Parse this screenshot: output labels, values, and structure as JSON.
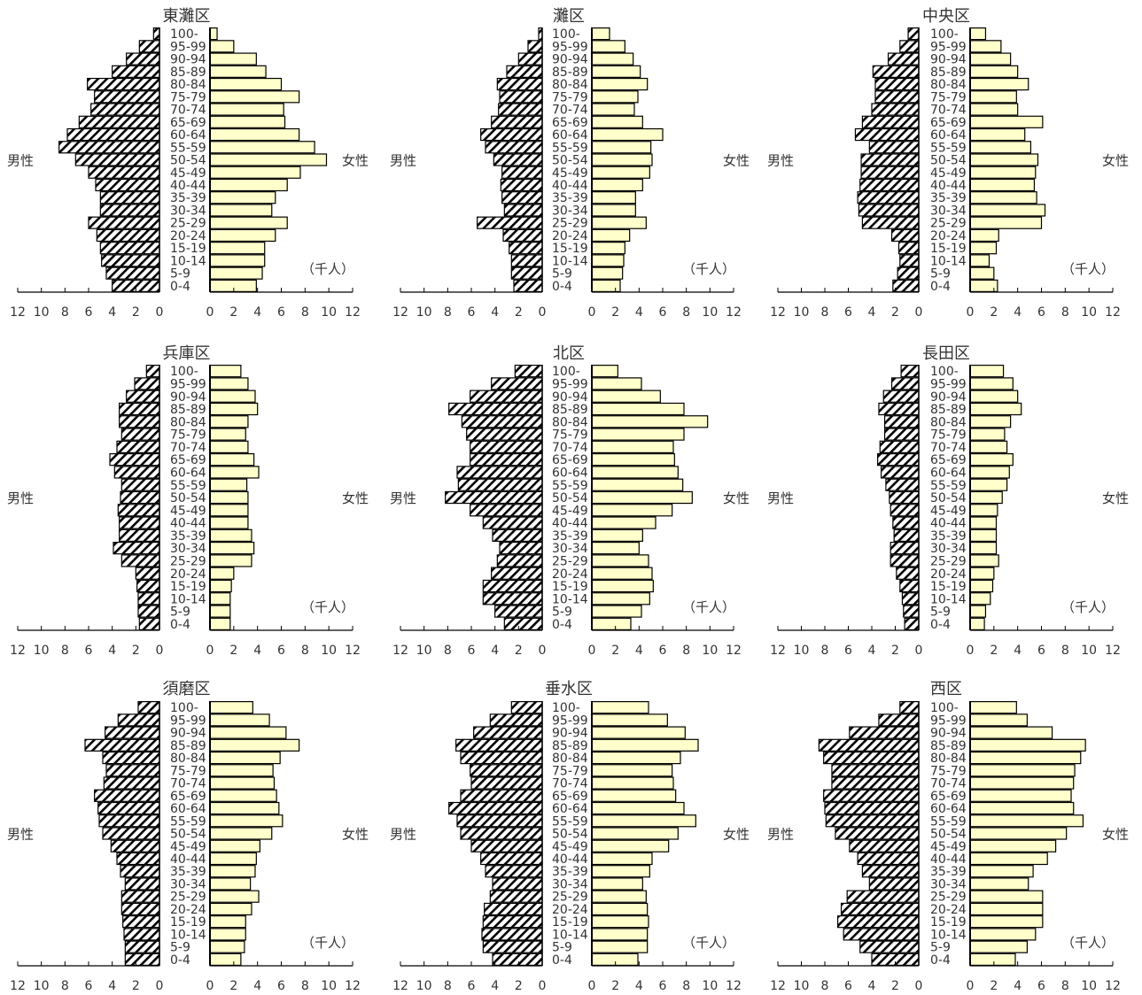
{
  "chart_data": [
    {
      "type": "bar",
      "title": "東灘区",
      "male_label": "男性",
      "female_label": "女性",
      "unit": "（千人）",
      "male_ticks": [
        "12",
        "10",
        "8",
        "6",
        "4",
        "2",
        "0"
      ],
      "female_ticks": [
        "0",
        "2",
        "4",
        "6",
        "8",
        "10",
        "12"
      ],
      "xlim": [
        0,
        12
      ],
      "male": [
        4.0,
        4.5,
        4.9,
        5.0,
        5.3,
        6.0,
        5.0,
        5.0,
        5.4,
        6.0,
        7.1,
        8.5,
        7.8,
        6.8,
        5.8,
        5.5,
        6.1,
        4.0,
        2.8,
        1.7,
        0.5
      ],
      "female": [
        3.9,
        4.4,
        4.6,
        4.6,
        5.5,
        6.5,
        5.2,
        5.5,
        6.5,
        7.6,
        9.8,
        8.8,
        7.5,
        6.3,
        6.2,
        7.5,
        6.0,
        4.7,
        3.9,
        2.0,
        0.6
      ]
    },
    {
      "type": "bar",
      "title": "灘区",
      "male_label": "男性",
      "female_label": "女性",
      "unit": "（千人）",
      "male_ticks": [
        "12",
        "10",
        "8",
        "6",
        "4",
        "2",
        "0"
      ],
      "female_ticks": [
        "0",
        "2",
        "4",
        "6",
        "8",
        "10",
        "12"
      ],
      "xlim": [
        0,
        12
      ],
      "male": [
        2.4,
        2.6,
        2.6,
        2.8,
        3.3,
        5.5,
        3.2,
        3.4,
        3.5,
        3.4,
        4.1,
        4.8,
        5.2,
        4.3,
        3.7,
        3.6,
        3.8,
        3.0,
        2.0,
        1.2,
        0.3
      ],
      "female": [
        2.4,
        2.6,
        2.7,
        2.8,
        3.2,
        4.6,
        3.7,
        3.7,
        4.3,
        4.9,
        5.1,
        5.0,
        6.0,
        4.3,
        3.6,
        3.9,
        4.7,
        4.1,
        3.5,
        2.8,
        1.5
      ]
    },
    {
      "type": "bar",
      "title": "中央区",
      "male_label": "男性",
      "female_label": "女性",
      "unit": "（千人）",
      "male_ticks": [
        "12",
        "10",
        "8",
        "6",
        "4",
        "2",
        "0"
      ],
      "female_ticks": [
        "0",
        "2",
        "4",
        "6",
        "8",
        "10",
        "12"
      ],
      "xlim": [
        0,
        12
      ],
      "male": [
        2.2,
        1.8,
        1.6,
        1.7,
        2.3,
        4.8,
        5.1,
        5.2,
        5.0,
        4.9,
        4.9,
        4.2,
        5.4,
        4.8,
        4.0,
        3.7,
        3.7,
        3.9,
        2.6,
        1.6,
        0.9
      ],
      "female": [
        2.3,
        2.0,
        1.6,
        2.2,
        2.4,
        6.0,
        6.3,
        5.6,
        5.4,
        5.5,
        5.7,
        5.1,
        4.6,
        6.1,
        4.0,
        3.9,
        4.9,
        4.0,
        3.4,
        2.6,
        1.3
      ]
    },
    {
      "type": "bar",
      "title": "兵庫区",
      "male_label": "男性",
      "female_label": "女性",
      "unit": "（千人）",
      "male_ticks": [
        "12",
        "10",
        "8",
        "6",
        "4",
        "2",
        "0"
      ],
      "female_ticks": [
        "0",
        "2",
        "4",
        "6",
        "8",
        "10",
        "12"
      ],
      "xlim": [
        0,
        12
      ],
      "male": [
        1.7,
        1.8,
        1.8,
        1.9,
        2.0,
        3.2,
        3.9,
        3.4,
        3.4,
        3.5,
        3.3,
        3.2,
        3.8,
        4.2,
        3.6,
        3.2,
        3.4,
        3.4,
        2.8,
        2.1,
        1.1
      ],
      "female": [
        1.7,
        1.7,
        1.7,
        1.8,
        2.0,
        3.5,
        3.7,
        3.5,
        3.2,
        3.2,
        3.2,
        3.1,
        4.1,
        3.7,
        3.2,
        3.0,
        3.2,
        4.0,
        3.8,
        3.2,
        2.6
      ]
    },
    {
      "type": "bar",
      "title": "北区",
      "male_label": "男性",
      "female_label": "女性",
      "unit": "（千人）",
      "male_ticks": [
        "12",
        "10",
        "8",
        "6",
        "4",
        "2",
        "0"
      ],
      "female_ticks": [
        "0",
        "2",
        "4",
        "6",
        "8",
        "10",
        "12"
      ],
      "xlim": [
        0,
        12
      ],
      "male": [
        3.2,
        4.0,
        5.0,
        5.0,
        4.3,
        3.8,
        3.6,
        4.2,
        5.0,
        6.1,
        8.2,
        7.1,
        7.2,
        6.1,
        6.1,
        6.4,
        6.8,
        7.9,
        6.1,
        4.3,
        2.3
      ],
      "female": [
        3.3,
        4.2,
        4.9,
        5.2,
        5.1,
        4.8,
        4.0,
        4.3,
        5.4,
        6.8,
        8.5,
        7.7,
        7.3,
        7.0,
        6.9,
        7.8,
        9.8,
        7.8,
        5.8,
        4.2,
        2.2
      ]
    },
    {
      "type": "bar",
      "title": "長田区",
      "male_label": "男性",
      "female_label": "女性",
      "unit": "（千人）",
      "male_ticks": [
        "12",
        "10",
        "8",
        "6",
        "4",
        "2",
        "0"
      ],
      "female_ticks": [
        "0",
        "2",
        "4",
        "6",
        "8",
        "10",
        "12"
      ],
      "xlim": [
        0,
        12
      ],
      "male": [
        1.2,
        1.3,
        1.4,
        1.6,
        1.9,
        2.4,
        2.4,
        2.1,
        2.2,
        2.4,
        2.5,
        2.8,
        3.2,
        3.5,
        3.3,
        2.9,
        2.9,
        3.4,
        3.0,
        2.3,
        1.5
      ],
      "female": [
        1.2,
        1.3,
        1.7,
        1.9,
        2.0,
        2.4,
        2.2,
        2.2,
        2.2,
        2.3,
        2.7,
        3.1,
        3.3,
        3.6,
        3.1,
        2.9,
        3.4,
        4.3,
        4.0,
        3.6,
        2.8
      ]
    },
    {
      "type": "bar",
      "title": "須磨区",
      "male_label": "男性",
      "female_label": "女性",
      "unit": "（千人）",
      "male_ticks": [
        "12",
        "10",
        "8",
        "6",
        "4",
        "2",
        "0"
      ],
      "female_ticks": [
        "0",
        "2",
        "4",
        "6",
        "8",
        "10",
        "12"
      ],
      "xlim": [
        0,
        12
      ],
      "male": [
        2.9,
        2.9,
        3.0,
        3.1,
        3.2,
        3.2,
        2.9,
        3.3,
        3.6,
        4.1,
        4.8,
        5.1,
        5.2,
        5.5,
        4.7,
        4.5,
        4.8,
        6.3,
        4.6,
        3.5,
        1.8
      ],
      "female": [
        2.6,
        2.9,
        3.0,
        3.0,
        3.5,
        4.1,
        3.4,
        3.8,
        3.9,
        4.2,
        5.2,
        6.1,
        5.8,
        5.6,
        5.4,
        5.3,
        5.9,
        7.5,
        6.4,
        5.0,
        3.6
      ]
    },
    {
      "type": "bar",
      "title": "垂水区",
      "male_label": "男性",
      "female_label": "女性",
      "unit": "（千人）",
      "male_ticks": [
        "12",
        "10",
        "8",
        "6",
        "4",
        "2",
        "0"
      ],
      "female_ticks": [
        "0",
        "2",
        "4",
        "6",
        "8",
        "10",
        "12"
      ],
      "xlim": [
        0,
        12
      ],
      "male": [
        4.2,
        5.0,
        5.1,
        5.0,
        4.9,
        4.4,
        4.2,
        4.8,
        5.2,
        6.0,
        6.9,
        7.2,
        7.9,
        6.9,
        6.0,
        6.1,
        6.9,
        7.3,
        5.8,
        4.4,
        2.6
      ],
      "female": [
        3.9,
        4.7,
        4.7,
        4.8,
        4.7,
        4.6,
        4.3,
        4.9,
        5.1,
        6.5,
        7.3,
        8.8,
        7.8,
        7.1,
        6.9,
        6.8,
        7.5,
        9.0,
        7.9,
        6.4,
        4.8
      ]
    },
    {
      "type": "bar",
      "title": "西区",
      "male_label": "男性",
      "female_label": "女性",
      "unit": "（千人）",
      "male_ticks": [
        "12",
        "10",
        "8",
        "6",
        "4",
        "2",
        "0"
      ],
      "female_ticks": [
        "0",
        "2",
        "4",
        "6",
        "8",
        "10",
        "12"
      ],
      "xlim": [
        0,
        12
      ],
      "male": [
        4.0,
        5.0,
        6.4,
        6.9,
        6.6,
        6.1,
        4.2,
        4.8,
        5.2,
        5.9,
        7.1,
        7.9,
        8.0,
        8.1,
        7.4,
        7.4,
        8.1,
        8.5,
        5.9,
        3.4,
        1.6
      ],
      "female": [
        3.8,
        4.8,
        5.5,
        6.1,
        6.1,
        6.1,
        4.9,
        5.3,
        6.5,
        7.2,
        8.1,
        9.5,
        8.7,
        8.5,
        8.7,
        8.8,
        9.3,
        9.7,
        6.9,
        4.8,
        3.9
      ]
    }
  ],
  "age_groups": [
    "0-4",
    "5-9",
    "10-14",
    "15-19",
    "20-24",
    "25-29",
    "30-34",
    "35-39",
    "40-44",
    "45-49",
    "50-54",
    "55-59",
    "60-64",
    "65-69",
    "70-74",
    "75-79",
    "80-84",
    "85-89",
    "90-94",
    "95-99",
    "100-"
  ],
  "colors": {
    "female_fill": "#ffffcc",
    "male_hatch": "#000000",
    "axis": "#000000",
    "text": "#333333"
  }
}
